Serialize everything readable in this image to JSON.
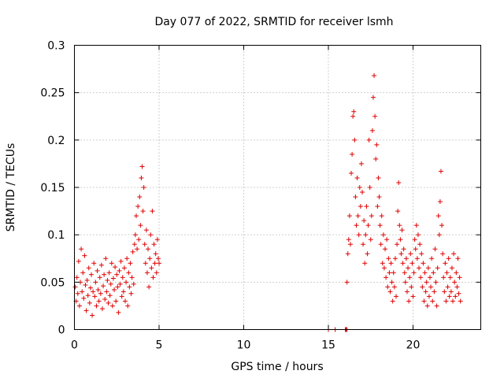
{
  "chart_data": {
    "type": "scatter",
    "title": "Day 077 of 2022, SRMTID for receiver lsmh",
    "xlabel": "GPS time / hours",
    "ylabel": "SRMTID / TECUs",
    "xlim": [
      0,
      24
    ],
    "ylim": [
      0,
      0.3
    ],
    "xticks": [
      0,
      5,
      10,
      15,
      20
    ],
    "yticks": [
      0,
      0.05,
      0.1,
      0.15,
      0.2,
      0.25,
      0.3
    ],
    "xtick_labels": [
      "0",
      "5",
      "10",
      "15",
      "20"
    ],
    "ytick_labels": [
      "0",
      "0.05",
      "0.1",
      "0.15",
      "0.2",
      "0.25",
      "0.3"
    ],
    "grid": true,
    "marker": "+",
    "color": "#e00000",
    "series": [
      {
        "name": "SRMTID",
        "points": [
          [
            0.05,
            0.045
          ],
          [
            0.1,
            0.03
          ],
          [
            0.15,
            0.055
          ],
          [
            0.2,
            0.038
          ],
          [
            0.25,
            0.072
          ],
          [
            0.3,
            0.025
          ],
          [
            0.35,
            0.05
          ],
          [
            0.4,
            0.085
          ],
          [
            0.45,
            0.04
          ],
          [
            0.5,
            0.06
          ],
          [
            0.55,
            0.033
          ],
          [
            0.6,
            0.078
          ],
          [
            0.65,
            0.047
          ],
          [
            0.7,
            0.02
          ],
          [
            0.75,
            0.052
          ],
          [
            0.8,
            0.036
          ],
          [
            0.85,
            0.065
          ],
          [
            0.9,
            0.028
          ],
          [
            0.95,
            0.044
          ],
          [
            1.0,
            0.058
          ],
          [
            1.05,
            0.015
          ],
          [
            1.1,
            0.04
          ],
          [
            1.15,
            0.07
          ],
          [
            1.2,
            0.035
          ],
          [
            1.25,
            0.05
          ],
          [
            1.3,
            0.025
          ],
          [
            1.35,
            0.062
          ],
          [
            1.4,
            0.042
          ],
          [
            1.45,
            0.03
          ],
          [
            1.5,
            0.055
          ],
          [
            1.55,
            0.038
          ],
          [
            1.6,
            0.068
          ],
          [
            1.65,
            0.022
          ],
          [
            1.7,
            0.046
          ],
          [
            1.75,
            0.058
          ],
          [
            1.8,
            0.032
          ],
          [
            1.85,
            0.075
          ],
          [
            1.9,
            0.04
          ],
          [
            1.95,
            0.052
          ],
          [
            2.0,
            0.028
          ],
          [
            2.05,
            0.06
          ],
          [
            2.1,
            0.036
          ],
          [
            2.15,
            0.048
          ],
          [
            2.2,
            0.07
          ],
          [
            2.25,
            0.025
          ],
          [
            2.3,
            0.054
          ],
          [
            2.35,
            0.042
          ],
          [
            2.4,
            0.066
          ],
          [
            2.45,
            0.03
          ],
          [
            2.5,
            0.058
          ],
          [
            2.55,
            0.045
          ],
          [
            2.6,
            0.018
          ],
          [
            2.65,
            0.062
          ],
          [
            2.7,
            0.048
          ],
          [
            2.75,
            0.072
          ],
          [
            2.8,
            0.035
          ],
          [
            2.85,
            0.055
          ],
          [
            2.9,
            0.04
          ],
          [
            2.95,
            0.065
          ],
          [
            3.0,
            0.03
          ],
          [
            3.05,
            0.05
          ],
          [
            3.1,
            0.075
          ],
          [
            3.15,
            0.025
          ],
          [
            3.2,
            0.06
          ],
          [
            3.25,
            0.045
          ],
          [
            3.3,
            0.07
          ],
          [
            3.35,
            0.038
          ],
          [
            3.4,
            0.055
          ],
          [
            3.45,
            0.082
          ],
          [
            3.5,
            0.048
          ],
          [
            3.55,
            0.09
          ],
          [
            3.6,
            0.1
          ],
          [
            3.65,
            0.12
          ],
          [
            3.7,
            0.085
          ],
          [
            3.75,
            0.13
          ],
          [
            3.8,
            0.095
          ],
          [
            3.85,
            0.14
          ],
          [
            3.9,
            0.11
          ],
          [
            3.95,
            0.16
          ],
          [
            4.0,
            0.172
          ],
          [
            4.05,
            0.125
          ],
          [
            4.1,
            0.15
          ],
          [
            4.15,
            0.09
          ],
          [
            4.2,
            0.07
          ],
          [
            4.25,
            0.105
          ],
          [
            4.3,
            0.06
          ],
          [
            4.35,
            0.085
          ],
          [
            4.4,
            0.045
          ],
          [
            4.45,
            0.075
          ],
          [
            4.5,
            0.1
          ],
          [
            4.55,
            0.065
          ],
          [
            4.6,
            0.125
          ],
          [
            4.65,
            0.055
          ],
          [
            4.7,
            0.09
          ],
          [
            4.75,
            0.07
          ],
          [
            4.8,
            0.08
          ],
          [
            4.85,
            0.06
          ],
          [
            4.9,
            0.095
          ],
          [
            4.95,
            0.075
          ],
          [
            5.0,
            0.07
          ],
          [
            15.0,
            0.0
          ],
          [
            15.4,
            0.0
          ],
          [
            16.0,
            0.0
          ],
          [
            16.05,
            0.0
          ],
          [
            16.1,
            0.0
          ],
          [
            16.1,
            0.05
          ],
          [
            16.15,
            0.08
          ],
          [
            16.2,
            0.095
          ],
          [
            16.25,
            0.12
          ],
          [
            16.3,
            0.09
          ],
          [
            16.35,
            0.165
          ],
          [
            16.4,
            0.185
          ],
          [
            16.45,
            0.225
          ],
          [
            16.5,
            0.23
          ],
          [
            16.55,
            0.2
          ],
          [
            16.6,
            0.14
          ],
          [
            16.65,
            0.11
          ],
          [
            16.7,
            0.16
          ],
          [
            16.75,
            0.12
          ],
          [
            16.8,
            0.1
          ],
          [
            16.85,
            0.15
          ],
          [
            16.9,
            0.13
          ],
          [
            16.95,
            0.175
          ],
          [
            17.0,
            0.145
          ],
          [
            17.05,
            0.09
          ],
          [
            17.1,
            0.115
          ],
          [
            17.15,
            0.07
          ],
          [
            17.2,
            0.1
          ],
          [
            17.25,
            0.13
          ],
          [
            17.3,
            0.08
          ],
          [
            17.35,
            0.11
          ],
          [
            17.4,
            0.2
          ],
          [
            17.45,
            0.15
          ],
          [
            17.5,
            0.095
          ],
          [
            17.55,
            0.12
          ],
          [
            17.6,
            0.21
          ],
          [
            17.65,
            0.245
          ],
          [
            17.7,
            0.268
          ],
          [
            17.75,
            0.225
          ],
          [
            17.8,
            0.18
          ],
          [
            17.85,
            0.195
          ],
          [
            17.9,
            0.13
          ],
          [
            17.95,
            0.16
          ],
          [
            18.0,
            0.14
          ],
          [
            18.05,
            0.11
          ],
          [
            18.1,
            0.09
          ],
          [
            18.15,
            0.12
          ],
          [
            18.2,
            0.07
          ],
          [
            18.25,
            0.1
          ],
          [
            18.3,
            0.065
          ],
          [
            18.35,
            0.085
          ],
          [
            18.4,
            0.055
          ],
          [
            18.45,
            0.095
          ],
          [
            18.5,
            0.045
          ],
          [
            18.55,
            0.075
          ],
          [
            18.6,
            0.06
          ],
          [
            18.65,
            0.04
          ],
          [
            18.7,
            0.07
          ],
          [
            18.75,
            0.05
          ],
          [
            18.8,
            0.03
          ],
          [
            18.85,
            0.06
          ],
          [
            18.9,
            0.045
          ],
          [
            18.95,
            0.075
          ],
          [
            19.0,
            0.035
          ],
          [
            19.05,
            0.09
          ],
          [
            19.1,
            0.125
          ],
          [
            19.15,
            0.155
          ],
          [
            19.2,
            0.11
          ],
          [
            19.25,
            0.095
          ],
          [
            19.3,
            0.08
          ],
          [
            19.35,
            0.105
          ],
          [
            19.4,
            0.07
          ],
          [
            19.45,
            0.085
          ],
          [
            19.5,
            0.06
          ],
          [
            19.55,
            0.05
          ],
          [
            19.6,
            0.075
          ],
          [
            19.65,
            0.04
          ],
          [
            19.7,
            0.065
          ],
          [
            19.75,
            0.03
          ],
          [
            19.8,
            0.055
          ],
          [
            19.85,
            0.08
          ],
          [
            19.9,
            0.045
          ],
          [
            19.95,
            0.07
          ],
          [
            20.0,
            0.035
          ],
          [
            20.05,
            0.06
          ],
          [
            20.1,
            0.095
          ],
          [
            20.15,
            0.085
          ],
          [
            20.2,
            0.11
          ],
          [
            20.25,
            0.075
          ],
          [
            20.3,
            0.1
          ],
          [
            20.35,
            0.065
          ],
          [
            20.4,
            0.09
          ],
          [
            20.45,
            0.055
          ],
          [
            20.5,
            0.08
          ],
          [
            20.55,
            0.045
          ],
          [
            20.6,
            0.07
          ],
          [
            20.65,
            0.03
          ],
          [
            20.7,
            0.06
          ],
          [
            20.75,
            0.04
          ],
          [
            20.8,
            0.05
          ],
          [
            20.85,
            0.025
          ],
          [
            20.9,
            0.065
          ],
          [
            20.95,
            0.035
          ],
          [
            21.0,
            0.055
          ],
          [
            21.05,
            0.045
          ],
          [
            21.1,
            0.075
          ],
          [
            21.15,
            0.03
          ],
          [
            21.2,
            0.06
          ],
          [
            21.25,
            0.04
          ],
          [
            21.3,
            0.085
          ],
          [
            21.35,
            0.05
          ],
          [
            21.4,
            0.025
          ],
          [
            21.45,
            0.065
          ],
          [
            21.5,
            0.12
          ],
          [
            21.55,
            0.1
          ],
          [
            21.6,
            0.135
          ],
          [
            21.65,
            0.167
          ],
          [
            21.7,
            0.11
          ],
          [
            21.75,
            0.08
          ],
          [
            21.8,
            0.055
          ],
          [
            21.85,
            0.04
          ],
          [
            21.9,
            0.07
          ],
          [
            21.95,
            0.03
          ],
          [
            22.0,
            0.06
          ],
          [
            22.05,
            0.045
          ],
          [
            22.1,
            0.075
          ],
          [
            22.15,
            0.035
          ],
          [
            22.2,
            0.055
          ],
          [
            22.25,
            0.04
          ],
          [
            22.3,
            0.065
          ],
          [
            22.35,
            0.03
          ],
          [
            22.4,
            0.08
          ],
          [
            22.45,
            0.05
          ],
          [
            22.5,
            0.035
          ],
          [
            22.55,
            0.06
          ],
          [
            22.6,
            0.045
          ],
          [
            22.65,
            0.075
          ],
          [
            22.7,
            0.038
          ],
          [
            22.75,
            0.055
          ],
          [
            22.8,
            0.03
          ]
        ]
      }
    ]
  }
}
